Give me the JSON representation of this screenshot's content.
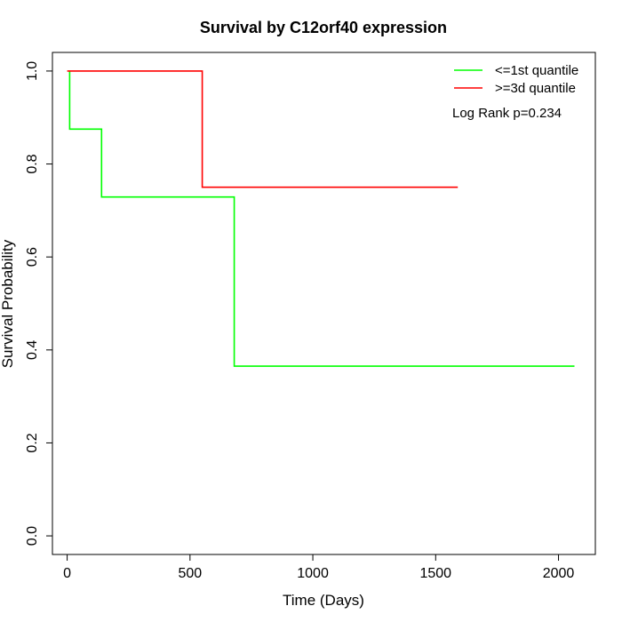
{
  "chart_data": {
    "type": "line",
    "step": true,
    "title": "Survival by C12orf40 expression",
    "xlabel": "Time (Days)",
    "ylabel": "Survival Probability",
    "xlim": [
      -60,
      2150
    ],
    "ylim": [
      -0.04,
      1.04
    ],
    "xticks": [
      0,
      500,
      1000,
      1500,
      2000
    ],
    "xtick_labels": [
      "0",
      "500",
      "1000",
      "1500",
      "2000"
    ],
    "yticks": [
      0.0,
      0.2,
      0.4,
      0.6,
      0.8,
      1.0
    ],
    "ytick_labels": [
      "0.0",
      "0.2",
      "0.4",
      "0.6",
      "0.8",
      "1.0"
    ],
    "grid": false,
    "legend_position": "top-right",
    "series": [
      {
        "name": "<=1st quantile",
        "color": "#00ff00",
        "x": [
          10,
          10,
          140,
          140,
          680,
          680,
          2065
        ],
        "y": [
          1.0,
          0.875,
          0.875,
          0.729,
          0.729,
          0.365,
          0.365
        ]
      },
      {
        "name": ">=3d quantile",
        "color": "#ff0000",
        "x": [
          0,
          550,
          550,
          1590
        ],
        "y": [
          1.0,
          1.0,
          0.75,
          0.75
        ]
      }
    ],
    "annotation": "Log Rank p=0.234"
  }
}
